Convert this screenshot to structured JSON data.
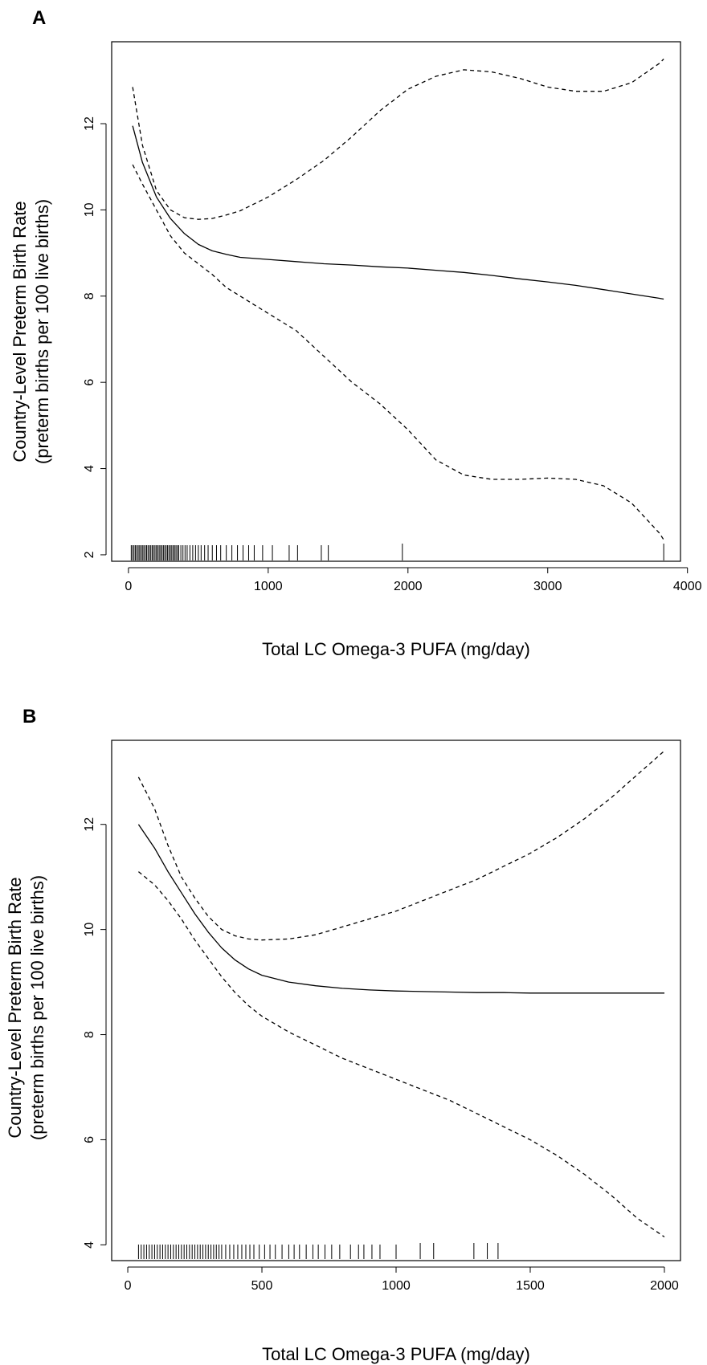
{
  "chart_data": [
    {
      "panel": "A",
      "type": "line",
      "xlabel": "Total LC Omega-3 PUFA  (mg/day)",
      "ylabel_line1": "Country-Level Preterm Birth Rate",
      "ylabel_line2": "(preterm births per 100 live births)",
      "xlim": [
        -120,
        3950
      ],
      "ylim": [
        1.85,
        13.9
      ],
      "xticks": [
        0,
        1000,
        2000,
        3000,
        4000
      ],
      "yticks": [
        2,
        4,
        6,
        8,
        10,
        12
      ],
      "grid": false,
      "legend": "none",
      "x": [
        30,
        100,
        200,
        300,
        400,
        500,
        600,
        700,
        800,
        1000,
        1200,
        1400,
        1600,
        1800,
        2000,
        2200,
        2400,
        2600,
        2800,
        3000,
        3200,
        3400,
        3600,
        3800,
        3830
      ],
      "series": [
        {
          "style": "solid",
          "values": [
            11.95,
            11.1,
            10.3,
            9.8,
            9.45,
            9.2,
            9.05,
            8.97,
            8.9,
            8.85,
            8.8,
            8.75,
            8.72,
            8.68,
            8.65,
            8.6,
            8.55,
            8.48,
            8.4,
            8.33,
            8.25,
            8.15,
            8.05,
            7.95,
            7.93
          ]
        },
        {
          "style": "dashed",
          "values": [
            12.85,
            11.5,
            10.45,
            10.0,
            9.82,
            9.78,
            9.8,
            9.88,
            9.98,
            10.3,
            10.7,
            11.15,
            11.7,
            12.3,
            12.8,
            13.1,
            13.25,
            13.2,
            13.05,
            12.85,
            12.75,
            12.75,
            12.95,
            13.4,
            13.5
          ]
        },
        {
          "style": "dashed",
          "values": [
            11.05,
            10.6,
            10.0,
            9.4,
            9.0,
            8.75,
            8.5,
            8.2,
            8.0,
            7.6,
            7.2,
            6.6,
            6.0,
            5.5,
            4.9,
            4.2,
            3.85,
            3.75,
            3.75,
            3.78,
            3.75,
            3.6,
            3.2,
            2.5,
            2.35
          ]
        }
      ],
      "rug": [
        20,
        30,
        40,
        50,
        60,
        70,
        80,
        90,
        100,
        110,
        120,
        130,
        140,
        150,
        160,
        170,
        180,
        190,
        200,
        210,
        220,
        230,
        240,
        250,
        260,
        270,
        280,
        290,
        300,
        310,
        320,
        330,
        340,
        350,
        360,
        375,
        390,
        405,
        420,
        440,
        460,
        480,
        500,
        520,
        545,
        570,
        600,
        630,
        660,
        700,
        740,
        780,
        820,
        860,
        900,
        960,
        1030,
        1150,
        1210,
        1380,
        1430,
        1960,
        3830
      ]
    },
    {
      "panel": "B",
      "type": "line",
      "xlabel": "Total LC Omega-3 PUFA  (mg/day)",
      "ylabel_line1": "Country-Level Preterm Birth Rate",
      "ylabel_line2": "(preterm births per 100 live births)",
      "xlim": [
        -60,
        2060
      ],
      "ylim": [
        3.7,
        13.6
      ],
      "xticks": [
        0,
        500,
        1000,
        1500,
        2000
      ],
      "yticks": [
        4,
        6,
        8,
        10,
        12
      ],
      "grid": false,
      "legend": "none",
      "x": [
        40,
        100,
        150,
        200,
        250,
        300,
        350,
        400,
        450,
        500,
        600,
        700,
        800,
        900,
        1000,
        1100,
        1200,
        1300,
        1400,
        1500,
        1600,
        1700,
        1800,
        1900,
        2000
      ],
      "series": [
        {
          "style": "solid",
          "values": [
            12.0,
            11.55,
            11.1,
            10.7,
            10.3,
            9.95,
            9.65,
            9.42,
            9.25,
            9.13,
            9.0,
            8.93,
            8.88,
            8.85,
            8.83,
            8.82,
            8.81,
            8.8,
            8.8,
            8.79,
            8.79,
            8.79,
            8.79,
            8.79,
            8.79
          ]
        },
        {
          "style": "dashed",
          "values": [
            12.9,
            12.3,
            11.6,
            11.0,
            10.6,
            10.25,
            10.0,
            9.88,
            9.82,
            9.8,
            9.82,
            9.9,
            10.05,
            10.2,
            10.35,
            10.55,
            10.75,
            10.95,
            11.2,
            11.45,
            11.75,
            12.1,
            12.5,
            12.95,
            13.4
          ]
        },
        {
          "style": "dashed",
          "values": [
            11.1,
            10.85,
            10.55,
            10.2,
            9.8,
            9.45,
            9.1,
            8.8,
            8.55,
            8.35,
            8.05,
            7.8,
            7.55,
            7.35,
            7.15,
            6.95,
            6.75,
            6.5,
            6.25,
            6.0,
            5.7,
            5.35,
            4.95,
            4.5,
            4.15
          ]
        }
      ],
      "rug": [
        40,
        50,
        60,
        70,
        80,
        90,
        100,
        110,
        120,
        130,
        140,
        150,
        160,
        170,
        180,
        190,
        200,
        210,
        220,
        230,
        240,
        250,
        260,
        270,
        280,
        290,
        300,
        310,
        320,
        330,
        340,
        350,
        365,
        380,
        395,
        410,
        425,
        440,
        455,
        470,
        490,
        510,
        530,
        550,
        575,
        600,
        620,
        640,
        665,
        690,
        710,
        735,
        760,
        790,
        830,
        860,
        880,
        910,
        940,
        1000,
        1090,
        1140,
        1290,
        1340,
        1380
      ]
    }
  ],
  "panels": [
    {
      "letter": "A",
      "xlabel": "Total LC Omega-3 PUFA  (mg/day)",
      "ylabel_line1": "Country-Level Preterm Birth Rate",
      "ylabel_line2": "(preterm births per 100 live births)"
    },
    {
      "letter": "B",
      "xlabel": "Total LC Omega-3 PUFA  (mg/day)",
      "ylabel_line1": "Country-Level Preterm Birth Rate",
      "ylabel_line2": "(preterm births per 100 live births)"
    }
  ]
}
